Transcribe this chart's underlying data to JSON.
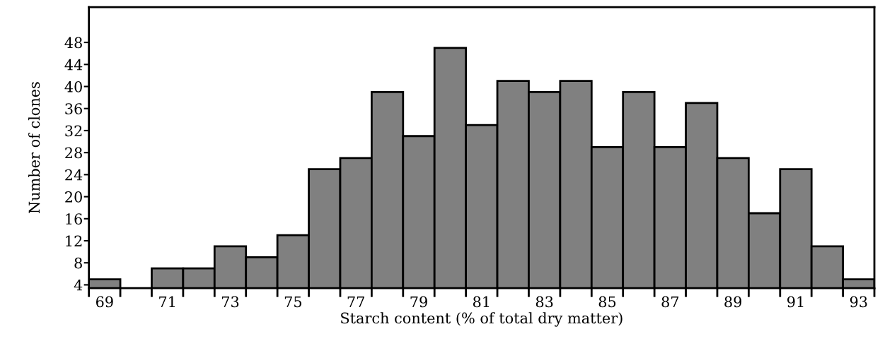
{
  "chart_data": {
    "type": "histogram",
    "xlabel": "Starch content (% of total dry matter)",
    "ylabel": "Number of clones",
    "bins": [
      68.5,
      69.5,
      70.5,
      71.5,
      72.5,
      73.5,
      74.5,
      75.5,
      76.5,
      77.5,
      78.5,
      79.5,
      80.5,
      81.5,
      82.5,
      83.5,
      84.5,
      85.5,
      86.5,
      87.5,
      88.5,
      89.5,
      90.5,
      91.5,
      92.5,
      93.5
    ],
    "values": [
      5,
      null,
      7,
      7,
      11,
      9,
      13,
      25,
      27,
      39,
      31,
      47,
      33,
      41,
      39,
      41,
      29,
      39,
      29,
      37,
      27,
      17,
      25,
      11,
      5
    ],
    "color": "#808080",
    "xlim": [
      68.5,
      93.5
    ],
    "xticks": [
      {
        "value": 68.5,
        "label": null
      },
      {
        "value": 69,
        "label": "69"
      },
      {
        "value": 69.5,
        "label": null
      },
      {
        "value": 70.5,
        "label": null
      },
      {
        "value": 71,
        "label": "71"
      },
      {
        "value": 71.5,
        "label": null
      },
      {
        "value": 72.5,
        "label": null
      },
      {
        "value": 73,
        "label": "73"
      },
      {
        "value": 73.5,
        "label": null
      },
      {
        "value": 74.5,
        "label": null
      },
      {
        "value": 75,
        "label": "75"
      },
      {
        "value": 75.5,
        "label": null
      },
      {
        "value": 76.5,
        "label": null
      },
      {
        "value": 77,
        "label": "77"
      },
      {
        "value": 77.5,
        "label": null
      },
      {
        "value": 78.5,
        "label": null
      },
      {
        "value": 79,
        "label": "79"
      },
      {
        "value": 79.5,
        "label": null
      },
      {
        "value": 80.5,
        "label": null
      },
      {
        "value": 81,
        "label": "81"
      },
      {
        "value": 81.5,
        "label": null
      },
      {
        "value": 82.5,
        "label": null
      },
      {
        "value": 83,
        "label": "83"
      },
      {
        "value": 83.5,
        "label": null
      },
      {
        "value": 84.5,
        "label": null
      },
      {
        "value": 85,
        "label": "85"
      },
      {
        "value": 85.5,
        "label": null
      },
      {
        "value": 86.5,
        "label": null
      },
      {
        "value": 87,
        "label": "87"
      },
      {
        "value": 87.5,
        "label": null
      },
      {
        "value": 88.5,
        "label": null
      },
      {
        "value": 89,
        "label": "89"
      },
      {
        "value": 89.5,
        "label": null
      },
      {
        "value": 90.5,
        "label": null
      },
      {
        "value": 91,
        "label": "91"
      },
      {
        "value": 91.5,
        "label": null
      },
      {
        "value": 92.5,
        "label": null
      },
      {
        "value": 93,
        "label": "93"
      },
      {
        "value": 93.5,
        "label": null
      }
    ],
    "ylim": [
      3.4,
      54.4
    ],
    "yticks": [
      4,
      8,
      12,
      16,
      20,
      24,
      28,
      32,
      36,
      40,
      44,
      48
    ],
    "grid": false,
    "legend": false
  }
}
